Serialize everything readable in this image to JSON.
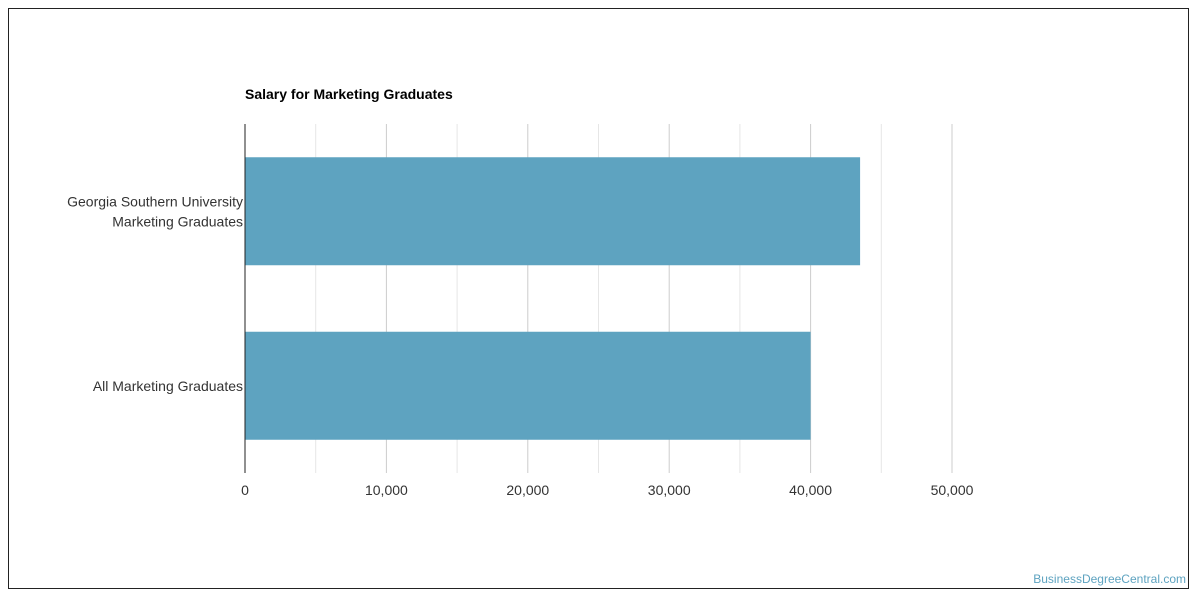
{
  "chart_data": {
    "type": "bar",
    "orientation": "horizontal",
    "title": "Salary for Marketing Graduates",
    "categories": [
      [
        "Georgia Southern University",
        "Marketing Graduates"
      ],
      [
        "All Marketing Graduates"
      ]
    ],
    "values": [
      43500,
      40000
    ],
    "xlim": [
      0,
      50000
    ],
    "xticks": [
      0,
      10000,
      20000,
      30000,
      40000,
      50000
    ],
    "xtick_labels": [
      "0",
      "10,000",
      "20,000",
      "30,000",
      "40,000",
      "50,000"
    ],
    "grid": true,
    "bar_color": "#5ea3c0"
  },
  "watermark": "BusinessDegreeCentral.com"
}
